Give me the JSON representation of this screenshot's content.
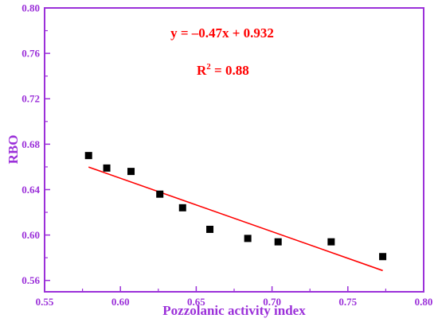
{
  "chart_data": {
    "type": "scatter",
    "title": "",
    "xlabel": "Pozzolanic activity index",
    "ylabel": "RBO",
    "xlim": [
      0.55,
      0.8
    ],
    "ylim": [
      0.55,
      0.8
    ],
    "x_ticks": [
      "0.55",
      "0.60",
      "0.65",
      "0.70",
      "0.75",
      "0.80"
    ],
    "y_ticks": [
      "0.56",
      "0.60",
      "0.64",
      "0.68",
      "0.72",
      "0.76",
      "0.80"
    ],
    "x_tick_values": [
      0.55,
      0.6,
      0.65,
      0.7,
      0.75,
      0.8
    ],
    "y_tick_values": [
      0.56,
      0.6,
      0.64,
      0.68,
      0.72,
      0.76,
      0.8
    ],
    "series": [
      {
        "marker": "square",
        "color": "#000000",
        "points": [
          {
            "x": 0.579,
            "y": 0.67
          },
          {
            "x": 0.591,
            "y": 0.659
          },
          {
            "x": 0.607,
            "y": 0.656
          },
          {
            "x": 0.626,
            "y": 0.636
          },
          {
            "x": 0.641,
            "y": 0.624
          },
          {
            "x": 0.659,
            "y": 0.605
          },
          {
            "x": 0.684,
            "y": 0.597
          },
          {
            "x": 0.704,
            "y": 0.594
          },
          {
            "x": 0.739,
            "y": 0.594
          },
          {
            "x": 0.773,
            "y": 0.581
          }
        ]
      }
    ],
    "fit_line": {
      "slope": -0.47,
      "intercept": 0.932,
      "x_start": 0.579,
      "x_end": 0.773,
      "color": "#ff0000"
    },
    "annotations": {
      "equation": "y = –0.47x + 0.932",
      "r2_prefix": "R",
      "r2_sup": "2",
      "r2_value": " = 0.88"
    },
    "colors": {
      "axis": "#9b30d9",
      "annotation": "#ff0000",
      "markers": "#000000"
    },
    "grid": false,
    "legend": "none"
  }
}
